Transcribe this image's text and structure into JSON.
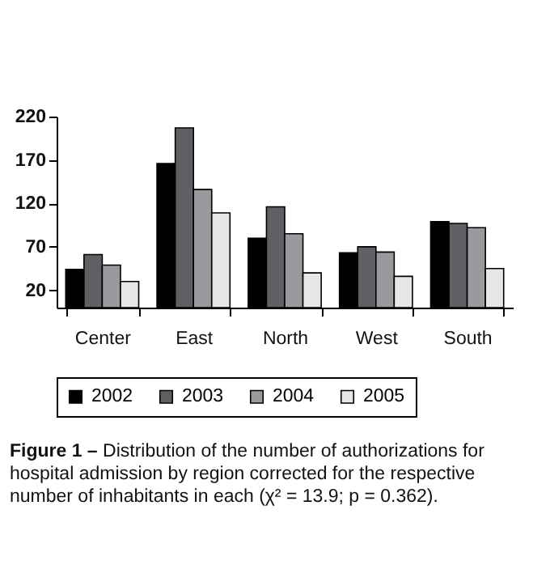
{
  "chart_data": {
    "type": "bar",
    "categories": [
      "Center",
      "East",
      "North",
      "West",
      "South"
    ],
    "series": [
      {
        "name": "2002",
        "color": "#000000",
        "values": [
          44,
          166,
          80,
          63,
          99
        ]
      },
      {
        "name": "2003",
        "color": "#606064",
        "values": [
          61,
          207,
          116,
          70,
          97
        ]
      },
      {
        "name": "2004",
        "color": "#9a9a9e",
        "values": [
          49,
          136,
          85,
          64,
          92
        ]
      },
      {
        "name": "2005",
        "color": "#e6e6e8",
        "values": [
          30,
          109,
          40,
          36,
          45
        ]
      }
    ],
    "ylim": [
      0,
      220
    ],
    "yticks": [
      20,
      70,
      120,
      170,
      220
    ],
    "grid": false,
    "legend": "bottom",
    "annotations": [
      "Figure 1 –",
      "Distribution of the number of authorizations for hospital admission by region corrected for the respective number of inhabitants in each (χ² = 13.9; p = 0.362)."
    ]
  }
}
